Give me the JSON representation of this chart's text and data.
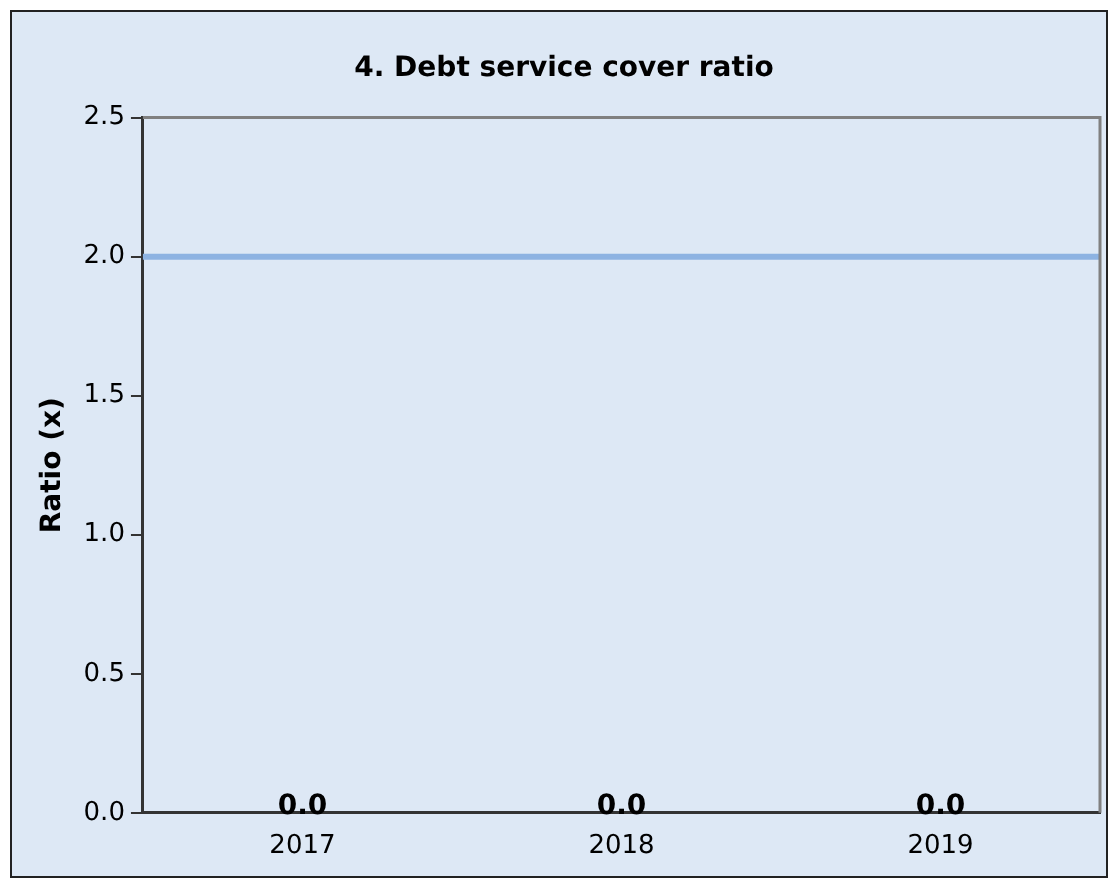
{
  "chart_data": {
    "type": "bar",
    "title": "4. Debt service cover ratio",
    "ylabel": "Ratio (x)",
    "categories": [
      "2017",
      "2018",
      "2019"
    ],
    "values": [
      0.0,
      0.0,
      0.0
    ],
    "value_labels": [
      "0.0",
      "0.0",
      "0.0"
    ],
    "ylim": [
      0,
      2.5
    ],
    "yticks": [
      {
        "value": 0,
        "label": "0.0"
      },
      {
        "value": 0.5,
        "label": "0.5"
      },
      {
        "value": 1,
        "label": "1.0"
      },
      {
        "value": 1.5,
        "label": "1.5"
      },
      {
        "value": 2,
        "label": "2.0"
      },
      {
        "value": 2.5,
        "label": "2.5"
      }
    ],
    "ref_lines": [
      {
        "axis": "y",
        "value": 2.0,
        "color": "#8db3e2"
      }
    ],
    "grid": false,
    "legend": false
  }
}
